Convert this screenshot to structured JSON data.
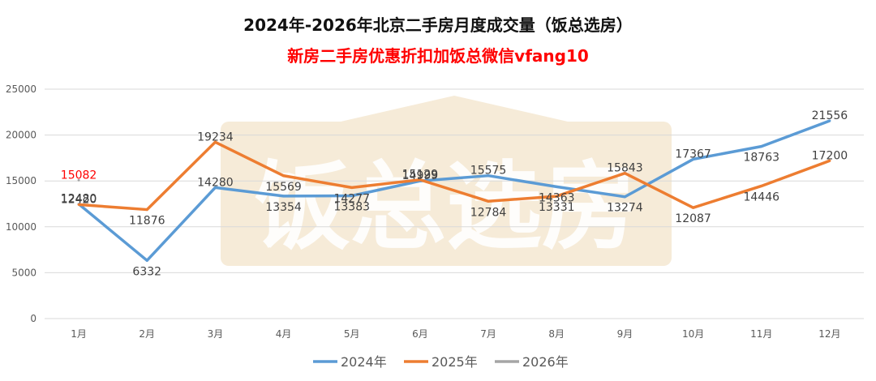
{
  "chart_data": {
    "type": "line",
    "title": "2024年-2026年北京二手房月度成交量（饭总选房）",
    "subtitle": "新房二手房优惠折扣加饭总微信vfang10",
    "watermark": "饭总选房",
    "categories": [
      "1月",
      "2月",
      "3月",
      "4月",
      "5月",
      "6月",
      "7月",
      "8月",
      "9月",
      "10月",
      "11月",
      "12月"
    ],
    "ylim": [
      0,
      25000
    ],
    "yticks": [
      0,
      5000,
      10000,
      15000,
      20000,
      25000
    ],
    "grid": true,
    "legend_position": "bottom",
    "series": [
      {
        "name": "2024年",
        "color": "#5B9BD5",
        "values": [
          12480,
          6332,
          14280,
          13354,
          13383,
          14999,
          15575,
          14363,
          13274,
          17367,
          18763,
          21556
        ]
      },
      {
        "name": "2025年",
        "color": "#ED7D31",
        "values": [
          12420,
          11876,
          19234,
          15569,
          14277,
          15129,
          12784,
          13331,
          15843,
          12087,
          14446,
          17200
        ]
      },
      {
        "name": "2026年",
        "color": "#A5A5A5",
        "label_color": "#FF0000",
        "values": [
          15082,
          null,
          null,
          null,
          null,
          null,
          null,
          null,
          null,
          null,
          null,
          null
        ]
      }
    ],
    "data_labels": {
      "2024年": [
        "12480",
        "6332",
        "14280",
        "13354",
        "13383",
        "14999",
        "15575",
        "14363",
        "13274",
        "17367",
        "18763",
        "21556"
      ],
      "2025年": [
        "12420",
        "11876",
        "19234",
        "15569",
        "14277",
        "15129",
        "12784",
        "13331",
        "15843",
        "12087",
        "14446",
        "17200"
      ],
      "2026年": [
        "15082"
      ]
    }
  },
  "colors": {
    "title": "#111111",
    "subtitle": "#FF0000",
    "watermark": "#F2E4CC"
  }
}
